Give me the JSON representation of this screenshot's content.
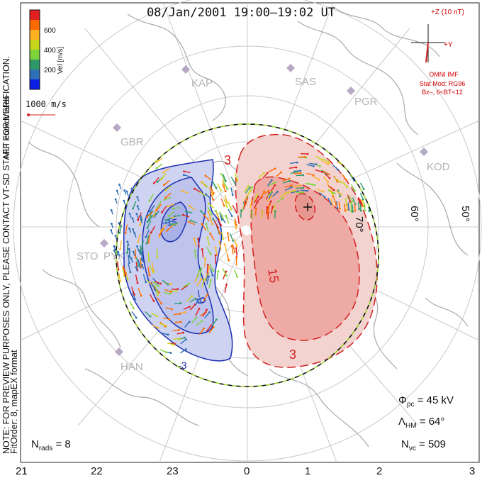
{
  "title": "08/Jan/2001 19:00–19:02 UT",
  "side_notes": {
    "coords": "MLT coordinates",
    "note": "NOTE: FOR PREVIEW PURPOSES ONLY, PLEASE CONTACT VT-SD STAFF FOR VERIFICATION.",
    "fit": "FitOrder: 8,  mapEX format"
  },
  "color_scale": {
    "label": "Vel [m/s]",
    "ticks": [
      "600",
      "400",
      "200"
    ],
    "colors": [
      "#0a1ee6",
      "#2e6fb5",
      "#2e9a6a",
      "#7ed23a",
      "#c7d61a",
      "#ffb020",
      "#ff6a00",
      "#e02020"
    ]
  },
  "velocity_reference": "1000 m/s",
  "imf": {
    "z_label": "+Z (10 nT)",
    "y_label": "+Y",
    "source": "OMNI IMF",
    "model": "Stat Mod: RG96",
    "condition": "Bz–, 6<BT<12"
  },
  "stations": [
    "KAP",
    "SAS",
    "PGR",
    "GBR",
    "KOD",
    "STO",
    "PYK",
    "HAN"
  ],
  "latitude_labels": [
    "70°",
    "60°",
    "50°"
  ],
  "contour_labels": [
    "–9",
    "–15",
    "15",
    "3",
    "3",
    "–3"
  ],
  "stats": {
    "phi_pc_label": "Φ",
    "phi_pc_sub": "pc",
    "phi_pc_value": "= 45 kV",
    "lambda_hm_label": "Λ",
    "lambda_hm_sub": "HM",
    "lambda_hm_value": "= 64°",
    "n_vc_label": "N",
    "n_vc_sub": "vc",
    "n_vc_value": "= 509",
    "n_rads_label": "N",
    "n_rads_sub": "rads",
    "n_rads_value": "= 8"
  },
  "mlt_axis": [
    "21",
    "22",
    "23",
    "0",
    "1",
    "2",
    "3"
  ],
  "colors": {
    "negative_cell": "#1a2fb0",
    "positive_cell": "#d42020",
    "negative_fill": "#c9cdf0",
    "positive_fill": "#f4c6c2",
    "grid": "#c0c0c0",
    "coast": "#a9a9a9",
    "hmb_dash_a": "#111111",
    "hmb_dash_b": "#9bd12a"
  }
}
